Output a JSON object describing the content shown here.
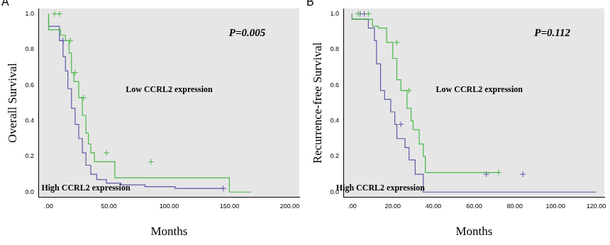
{
  "chart_data": [
    {
      "type": "line",
      "panel_label": "A",
      "y_label": "Overall Survival",
      "x_label": "Months",
      "annotations": [
        "P=0.005"
      ],
      "xlim": [
        -8,
        208
      ],
      "xticks": [
        {
          "value": 0,
          "label": ".00"
        },
        {
          "value": 50,
          "label": "50.00"
        },
        {
          "value": 100,
          "label": "100.00"
        },
        {
          "value": 150,
          "label": "150.00"
        },
        {
          "value": 200,
          "label": "200.00"
        }
      ],
      "ylim": [
        -0.03,
        1.03
      ],
      "yticks": [
        {
          "value": 0,
          "label": "0.0"
        },
        {
          "value": 0.2,
          "label": "0.2"
        },
        {
          "value": 0.4,
          "label": "0.4"
        },
        {
          "value": 0.6,
          "label": "0.6"
        },
        {
          "value": 0.8,
          "label": "0.8"
        },
        {
          "value": 1,
          "label": "1.0"
        }
      ],
      "grid": false,
      "series": [
        {
          "name": "Low CCRL2 expression",
          "color": "#48b848",
          "marker": "+",
          "x": [
            0,
            10,
            14,
            17,
            19,
            21,
            25,
            28,
            31,
            33,
            35,
            38,
            55,
            150,
            168
          ],
          "values": [
            1.0,
            0.91,
            0.88,
            0.85,
            0.78,
            0.67,
            0.62,
            0.53,
            0.43,
            0.33,
            0.27,
            0.22,
            0.17,
            0.08,
            0.0
          ],
          "censored": [
            [
              5,
              1.0
            ],
            [
              9,
              1.0
            ],
            [
              18,
              0.85
            ],
            [
              22,
              0.67
            ],
            [
              29,
              0.53
            ],
            [
              48,
              0.22
            ],
            [
              85,
              0.17
            ]
          ]
        },
        {
          "name": "High CCRL2 expression",
          "color": "#5a5aa8",
          "marker": "+",
          "x": [
            0,
            9,
            12,
            14,
            16,
            19,
            22,
            25,
            28,
            31,
            35,
            40,
            48,
            60,
            80,
            105,
            120,
            145
          ],
          "values": [
            1.0,
            0.93,
            0.85,
            0.76,
            0.68,
            0.58,
            0.47,
            0.38,
            0.3,
            0.22,
            0.15,
            0.1,
            0.07,
            0.05,
            0.04,
            0.03,
            0.02,
            0.02
          ],
          "censored": [
            [
              12,
              0.85
            ],
            [
              145,
              0.02
            ]
          ]
        }
      ]
    },
    {
      "type": "line",
      "panel_label": "B",
      "y_label": "Recurrence-free Survival",
      "x_label": "Months",
      "annotations": [
        "P=0.112"
      ],
      "xlim": [
        -4,
        124
      ],
      "xticks": [
        {
          "value": 0,
          "label": ".00"
        },
        {
          "value": 20,
          "label": "20.00"
        },
        {
          "value": 40,
          "label": "40.00"
        },
        {
          "value": 60,
          "label": "60.00"
        },
        {
          "value": 80,
          "label": "80.00"
        },
        {
          "value": 100,
          "label": "100.00"
        },
        {
          "value": 120,
          "label": "120.00"
        }
      ],
      "ylim": [
        -0.03,
        1.03
      ],
      "yticks": [
        {
          "value": 0,
          "label": "0.0"
        },
        {
          "value": 0.2,
          "label": "0.2"
        },
        {
          "value": 0.4,
          "label": "0.4"
        },
        {
          "value": 0.6,
          "label": "0.6"
        },
        {
          "value": 0.8,
          "label": "0.8"
        },
        {
          "value": 1,
          "label": "1.0"
        }
      ],
      "grid": false,
      "series": [
        {
          "name": "Low CCRL2 expression",
          "color": "#48b848",
          "marker": "+",
          "x": [
            0,
            10,
            13,
            17,
            20,
            22,
            24,
            27,
            29,
            30,
            33,
            35,
            36,
            38,
            72
          ],
          "values": [
            1.0,
            0.97,
            0.93,
            0.92,
            0.84,
            0.75,
            0.63,
            0.57,
            0.47,
            0.4,
            0.35,
            0.27,
            0.2,
            0.11,
            0.11
          ],
          "censored": [
            [
              3,
              1.0
            ],
            [
              8,
              1.0
            ],
            [
              22,
              0.84
            ],
            [
              28,
              0.57
            ],
            [
              72,
              0.11
            ]
          ]
        },
        {
          "name": "High CCRL2 expression",
          "color": "#5a5aa8",
          "marker": "+",
          "x": [
            0,
            8,
            11,
            12,
            14,
            16,
            19,
            21,
            22,
            26,
            28,
            31,
            35,
            120
          ],
          "values": [
            1.0,
            0.97,
            0.92,
            0.85,
            0.72,
            0.57,
            0.52,
            0.45,
            0.38,
            0.3,
            0.25,
            0.18,
            0.1,
            0.0
          ],
          "censored": [
            [
              4,
              1.0
            ],
            [
              6,
              1.0
            ],
            [
              24,
              0.38
            ],
            [
              66,
              0.1
            ],
            [
              84,
              0.1
            ]
          ]
        }
      ]
    }
  ]
}
